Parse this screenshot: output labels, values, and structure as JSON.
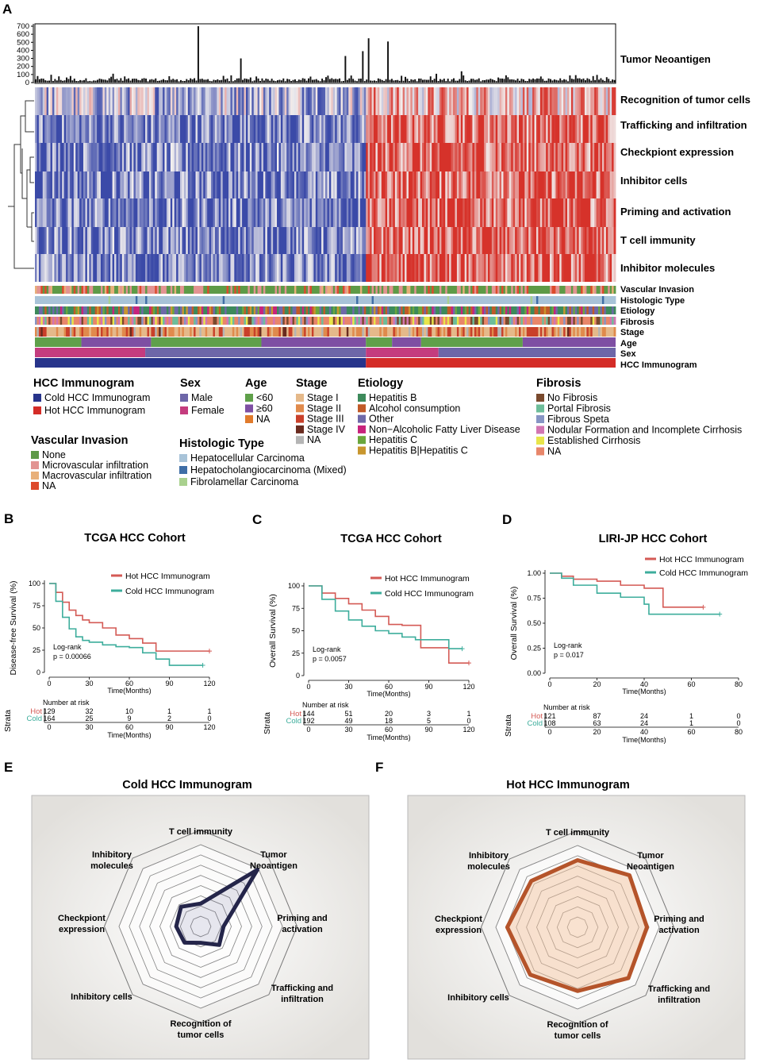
{
  "panels": {
    "A": "A",
    "B": "B",
    "C": "C",
    "D": "D",
    "E": "E",
    "F": "F"
  },
  "heatmap": {
    "bar_label": "Tumor Neoantigen",
    "bar_ticks": [
      "0",
      "100",
      "200",
      "300",
      "400",
      "500",
      "600",
      "700"
    ],
    "rows": [
      "Recognition of tumor cells",
      "Trafficking and infiltration",
      "Checkpiont expression",
      "Inhibitor cells",
      "Priming and activation",
      "T cell immunity",
      "Inhibitor molecules"
    ],
    "annotation_rows": [
      "Vascular Invasion",
      "Histologic Type",
      "Etiology",
      "Fibrosis",
      "Stage",
      "Age",
      "Sex",
      "HCC Immunogram"
    ],
    "colors": {
      "cold": "#3b4aa8",
      "hot": "#d6322a",
      "neutral": "#f2efef"
    }
  },
  "legend": {
    "hcc": {
      "title": "HCC Immunogram",
      "items": [
        {
          "label": "Cold HCC Immunogram",
          "color": "#27348b"
        },
        {
          "label": "Hot HCC Immunogram",
          "color": "#d42c27"
        }
      ]
    },
    "sex": {
      "title": "Sex",
      "items": [
        {
          "label": "Male",
          "color": "#6d66a8"
        },
        {
          "label": "Female",
          "color": "#c43c7e"
        }
      ]
    },
    "age": {
      "title": "Age",
      "items": [
        {
          "label": "<60",
          "color": "#5fa04a"
        },
        {
          "label": "≥60",
          "color": "#7e4fa3"
        },
        {
          "label": "NA",
          "color": "#e17b2c"
        }
      ]
    },
    "stage": {
      "title": "Stage",
      "items": [
        {
          "label": "Stage I",
          "color": "#e5b98a"
        },
        {
          "label": "Stage II",
          "color": "#e08a4c"
        },
        {
          "label": "Stage III",
          "color": "#c9402a"
        },
        {
          "label": "Stage IV",
          "color": "#6a2b1f"
        },
        {
          "label": "NA",
          "color": "#b5b5b5"
        }
      ]
    },
    "etiology": {
      "title": "Etiology",
      "items": [
        {
          "label": "Hepatitis B",
          "color": "#3d8a5b"
        },
        {
          "label": "Alcohol consumption",
          "color": "#c15a28"
        },
        {
          "label": "Other",
          "color": "#6e69a8"
        },
        {
          "label": "Non−Alcoholic Fatty Liver Disease",
          "color": "#c8237c"
        },
        {
          "label": "Hepatitis C",
          "color": "#6aa63c"
        },
        {
          "label": "Hepatitis B|Hepatitis C",
          "color": "#c8962e"
        }
      ]
    },
    "fibrosis": {
      "title": "Fibrosis",
      "items": [
        {
          "label": "No Fibrosis",
          "color": "#7a4a2e"
        },
        {
          "label": "Portal Fibrosis",
          "color": "#6dbd9a"
        },
        {
          "label": "Fibrous Speta",
          "color": "#8795c4"
        },
        {
          "label": "Nodular Formation and Incomplete Cirrhosis",
          "color": "#d275b2"
        },
        {
          "label": "Established Cirrhosis",
          "color": "#e8e54a"
        },
        {
          "label": "NA",
          "color": "#e8866a"
        }
      ]
    },
    "vascular": {
      "title": "Vascular Invasion",
      "items": [
        {
          "label": "None",
          "color": "#5e9a47"
        },
        {
          "label": "Microvascular infiltration",
          "color": "#e29492"
        },
        {
          "label": "Macrovascular infiltration",
          "color": "#e8b07a"
        },
        {
          "label": "NA",
          "color": "#dd4a2c"
        }
      ]
    },
    "histologic": {
      "title": "Histologic Type",
      "items": [
        {
          "label": "Hepatocellular Carcinoma",
          "color": "#a8c3d8"
        },
        {
          "label": "Hepatocholangiocarcinoma (Mixed)",
          "color": "#3f6ea6"
        },
        {
          "label": "Fibrolamellar Carcinoma",
          "color": "#a9d18e"
        }
      ]
    }
  },
  "km": [
    {
      "id": "B",
      "title": "TCGA HCC Cohort",
      "ylabel": "Disease-free Survival (%)",
      "xlabel": "Time(Months)",
      "yticks": [
        "0",
        "25",
        "50",
        "75",
        "100"
      ],
      "xticks": [
        "0",
        "30",
        "60",
        "90",
        "120"
      ],
      "stats": [
        "Log-rank",
        "p = 0.00066"
      ],
      "legend": [
        "Hot HCC Immunogram",
        "Cold HCC Immunogram"
      ],
      "strata_label": "Strata",
      "risk_title": "Number at risk",
      "risk_rows": [
        {
          "name": "Hot",
          "values": [
            "129",
            "32",
            "10",
            "1",
            "1"
          ]
        },
        {
          "name": "Cold",
          "values": [
            "164",
            "25",
            "9",
            "2",
            "0"
          ]
        }
      ],
      "risk_xticks": [
        "0",
        "30",
        "60",
        "90",
        "120"
      ],
      "risk_xlabel": "Time(Months)"
    },
    {
      "id": "C",
      "title": "TCGA HCC Cohort",
      "ylabel": "Overall Survival (%)",
      "xlabel": "Time(Months)",
      "yticks": [
        "0",
        "25",
        "50",
        "75",
        "100"
      ],
      "xticks": [
        "0",
        "30",
        "60",
        "90",
        "120"
      ],
      "stats": [
        "Log-rank",
        "p = 0.0057"
      ],
      "legend": [
        "Hot HCC Immunogram",
        "Cold HCC Immunogram"
      ],
      "strata_label": "Strata",
      "risk_title": "Number at risk",
      "risk_rows": [
        {
          "name": "Hot",
          "values": [
            "144",
            "51",
            "20",
            "3",
            "1"
          ]
        },
        {
          "name": "Cold",
          "values": [
            "192",
            "49",
            "18",
            "5",
            "0"
          ]
        }
      ],
      "risk_xticks": [
        "0",
        "30",
        "60",
        "90",
        "120"
      ],
      "risk_xlabel": "Time(Months)"
    },
    {
      "id": "D",
      "title": "LIRI-JP HCC Cohort",
      "ylabel": "Overall Survival (%)",
      "xlabel": "Time(Months)",
      "yticks": [
        "0.00",
        "0.25",
        "0.50",
        "0.75",
        "1.00"
      ],
      "xticks": [
        "0",
        "20",
        "40",
        "60",
        "80"
      ],
      "stats": [
        "Log-rank",
        "p = 0.017"
      ],
      "legend": [
        "Hot HCC Immunogram",
        "Cold HCC Immunogram"
      ],
      "strata_label": "Strata",
      "risk_title": "Number at risk",
      "risk_rows": [
        {
          "name": "Hot",
          "values": [
            "121",
            "87",
            "24",
            "1",
            "0"
          ]
        },
        {
          "name": "Cold",
          "values": [
            "108",
            "63",
            "24",
            "1",
            "0"
          ]
        }
      ],
      "risk_xticks": [
        "0",
        "20",
        "40",
        "60",
        "80"
      ],
      "risk_xlabel": "Time(Months)"
    }
  ],
  "radar": [
    {
      "id": "E",
      "title": "Cold HCC Immunogram",
      "axes": [
        "T cell immunity",
        "Tumor|Neoantigen",
        "Priming and|activation",
        "Trafficking and|infiltration",
        "Recognition of|tumor cells",
        "Inhibitory cells",
        "Checkpiont|expression",
        "Inhibitory|molecules"
      ],
      "values": [
        0.28,
        0.98,
        0.28,
        0.32,
        0.2,
        0.28,
        0.3,
        0.34
      ],
      "stroke": "#24254a",
      "fill": "rgba(60,60,120,0.12)"
    },
    {
      "id": "F",
      "title": "Hot HCC Immunogram",
      "axes": [
        "T cell immunity",
        "Tumor|Neoantigen",
        "Priming and|activation",
        "Trafficking and|infiltration",
        "Recognition of|tumor cells",
        "Inhibitory cells",
        "Checkpiont|expression",
        "Inhibitory|molecules"
      ],
      "values": [
        0.82,
        0.9,
        0.85,
        0.88,
        0.78,
        0.82,
        0.86,
        0.8
      ],
      "stroke": "#b5542a",
      "fill": "rgba(241,190,150,0.45)"
    }
  ],
  "chart_data": [
    {
      "type": "bar",
      "title": "Tumor Neoantigen",
      "ylim": [
        0,
        700
      ],
      "note": "per-sample neoantigen counts; most samples below ~60, peaks near 700, 550, 510, 390, 330, 300"
    },
    {
      "type": "line",
      "title": "TCGA HCC Cohort (Disease-free)",
      "xlabel": "Time(Months)",
      "ylabel": "Disease-free Survival (%)",
      "ylim": [
        0,
        100
      ],
      "xlim": [
        0,
        120
      ],
      "series": [
        {
          "name": "Hot HCC Immunogram",
          "x": [
            0,
            5,
            10,
            15,
            20,
            25,
            30,
            40,
            50,
            60,
            70,
            80,
            90,
            120
          ],
          "y": [
            100,
            90,
            79,
            70,
            64,
            59,
            56,
            50,
            42,
            38,
            33,
            24,
            24,
            24
          ]
        },
        {
          "name": "Cold HCC Immunogram",
          "x": [
            0,
            5,
            10,
            15,
            20,
            25,
            30,
            40,
            50,
            60,
            70,
            80,
            90,
            115
          ],
          "y": [
            100,
            80,
            62,
            49,
            40,
            36,
            34,
            31,
            29,
            28,
            22,
            15,
            8,
            8
          ]
        }
      ]
    },
    {
      "type": "line",
      "title": "TCGA HCC Cohort (Overall)",
      "xlabel": "Time(Months)",
      "ylabel": "Overall Survival (%)",
      "ylim": [
        0,
        100
      ],
      "xlim": [
        0,
        120
      ],
      "series": [
        {
          "name": "Hot HCC Immunogram",
          "x": [
            0,
            10,
            20,
            30,
            40,
            50,
            60,
            70,
            80,
            84,
            100,
            105,
            120
          ],
          "y": [
            100,
            92,
            86,
            80,
            73,
            66,
            57,
            56,
            56,
            31,
            31,
            14,
            14
          ]
        },
        {
          "name": "Cold HCC Immunogram",
          "x": [
            0,
            10,
            20,
            30,
            40,
            50,
            60,
            70,
            80,
            90,
            105,
            115
          ],
          "y": [
            100,
            85,
            72,
            62,
            55,
            50,
            47,
            43,
            40,
            40,
            30,
            30
          ]
        }
      ]
    },
    {
      "type": "line",
      "title": "LIRI-JP HCC Cohort",
      "xlabel": "Time(Months)",
      "ylabel": "Overall Survival (%)",
      "ylim": [
        0,
        1
      ],
      "xlim": [
        0,
        80
      ],
      "series": [
        {
          "name": "Hot HCC Immunogram",
          "x": [
            0,
            5,
            10,
            20,
            30,
            40,
            47,
            48,
            65
          ],
          "y": [
            1,
            0.97,
            0.94,
            0.92,
            0.88,
            0.85,
            0.85,
            0.66,
            0.66
          ]
        },
        {
          "name": "Cold HCC Immunogram",
          "x": [
            0,
            5,
            10,
            20,
            30,
            37,
            40,
            42,
            72
          ],
          "y": [
            1,
            0.95,
            0.88,
            0.8,
            0.76,
            0.76,
            0.69,
            0.59,
            0.59
          ]
        }
      ]
    },
    {
      "type": "radar",
      "title": "Cold HCC Immunogram",
      "categories": [
        "T cell immunity",
        "Tumor Neoantigen",
        "Priming and activation",
        "Trafficking and infiltration",
        "Recognition of tumor cells",
        "Inhibitory cells",
        "Checkpiont expression",
        "Inhibitory molecules"
      ],
      "values": [
        0.28,
        0.98,
        0.28,
        0.32,
        0.2,
        0.28,
        0.3,
        0.34
      ]
    },
    {
      "type": "radar",
      "title": "Hot HCC Immunogram",
      "categories": [
        "T cell immunity",
        "Tumor Neoantigen",
        "Priming and activation",
        "Trafficking and infiltration",
        "Recognition of tumor cells",
        "Inhibitory cells",
        "Checkpiont expression",
        "Inhibitory molecules"
      ],
      "values": [
        0.82,
        0.9,
        0.85,
        0.88,
        0.78,
        0.82,
        0.86,
        0.8
      ]
    }
  ]
}
